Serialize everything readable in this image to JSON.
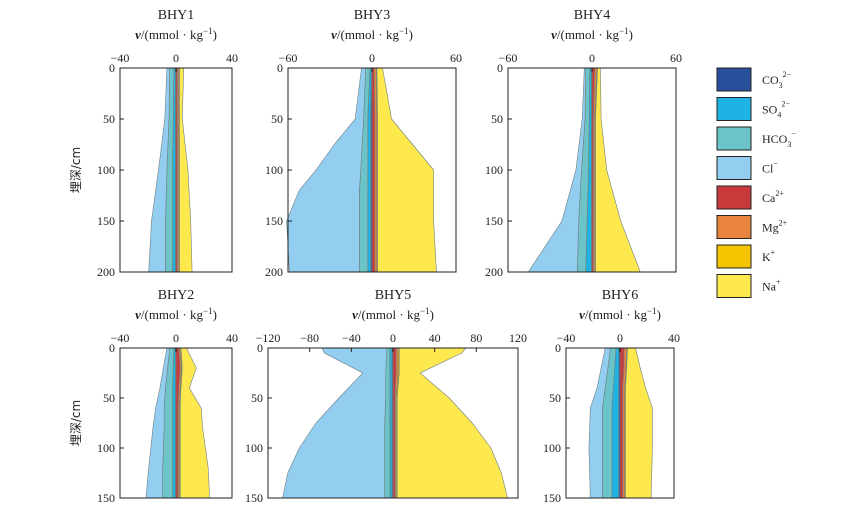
{
  "colors": {
    "CO3": "#2a4f9c",
    "SO4": "#1fb3e3",
    "HCO3": "#6cc4c8",
    "Cl": "#93cdf0",
    "Ca": "#c8393b",
    "Mg": "#e8843e",
    "K": "#f5c400",
    "Na": "#fde84e"
  },
  "legend": [
    {
      "key": "CO3",
      "base": "CO",
      "sub": "3",
      "sup": "2−"
    },
    {
      "key": "SO4",
      "base": "SO",
      "sub": "4",
      "sup": "2−"
    },
    {
      "key": "HCO3",
      "base": "HCO",
      "sub": "3",
      "sup": "−"
    },
    {
      "key": "Cl",
      "base": "Cl",
      "sub": "",
      "sup": "−"
    },
    {
      "key": "Ca",
      "base": "Ca",
      "sub": "",
      "sup": "2+"
    },
    {
      "key": "Mg",
      "base": "Mg",
      "sub": "",
      "sup": "2+"
    },
    {
      "key": "K",
      "base": "K",
      "sub": "",
      "sup": "+"
    },
    {
      "key": "Na",
      "base": "Na",
      "sub": "",
      "sup": "+"
    }
  ],
  "chart_data": [
    {
      "type": "area",
      "title": "BHY1",
      "xlabel_italic": "v",
      "xlabel_rest": "/(mmol · kg",
      "xlabel_sup": "−1",
      "xlabel_end": ")",
      "ylabel": "埋深/cm",
      "xlim": [
        -40,
        40
      ],
      "ylim": [
        200,
        0
      ],
      "xticks": [
        -40,
        0,
        40
      ],
      "yticks": [
        0,
        50,
        100,
        150,
        200
      ],
      "depth": [
        0,
        50,
        100,
        150,
        200
      ],
      "anions": {
        "CO3": [
          0.5,
          0.5,
          0.5,
          0.5,
          0.5
        ],
        "SO4": [
          1,
          1.5,
          2,
          2,
          2
        ],
        "HCO3": [
          3,
          3,
          4,
          5,
          5
        ],
        "Cl": [
          2,
          3,
          6,
          10,
          12
        ]
      },
      "cations": {
        "Ca": [
          1,
          1,
          1,
          1,
          1
        ],
        "Mg": [
          1,
          1,
          1,
          1,
          1
        ],
        "K": [
          0.5,
          0.5,
          0.5,
          0.5,
          0.5
        ],
        "Na": [
          3,
          2,
          6,
          8,
          9
        ]
      }
    },
    {
      "type": "area",
      "title": "BHY3",
      "xlabel_italic": "v",
      "xlabel_rest": "/(mmol · kg",
      "xlabel_sup": "−1",
      "xlabel_end": ")",
      "ylabel": "",
      "xlim": [
        -60,
        60
      ],
      "ylim": [
        200,
        0
      ],
      "xticks": [
        -60,
        0,
        60
      ],
      "yticks": [
        0,
        50,
        100,
        150,
        200
      ],
      "depth": [
        0,
        50,
        75,
        100,
        120,
        150,
        200
      ],
      "anions": {
        "CO3": [
          0.5,
          1,
          1,
          1,
          1,
          1,
          1
        ],
        "SO4": [
          1,
          2,
          2,
          2,
          2,
          2,
          2
        ],
        "HCO3": [
          3,
          3,
          4,
          5,
          6,
          6,
          6
        ],
        "Cl": [
          3,
          6,
          20,
          32,
          43,
          52,
          50
        ]
      },
      "cations": {
        "Ca": [
          1.5,
          2,
          2,
          2,
          2,
          2,
          2
        ],
        "Mg": [
          1.5,
          1.5,
          1.5,
          1.5,
          1.5,
          1.5,
          1.5
        ],
        "K": [
          0.5,
          0.5,
          0.5,
          0.5,
          0.5,
          0.5,
          0.5
        ],
        "Na": [
          4,
          10,
          25,
          40,
          40,
          40,
          42
        ]
      }
    },
    {
      "type": "area",
      "title": "BHY4",
      "xlabel_italic": "v",
      "xlabel_rest": "/(mmol · kg",
      "xlabel_sup": "−1",
      "xlabel_end": ")",
      "ylabel": "",
      "xlim": [
        -60,
        60
      ],
      "ylim": [
        200,
        0
      ],
      "xticks": [
        -60,
        0,
        60
      ],
      "yticks": [
        0,
        50,
        100,
        150,
        200
      ],
      "depth": [
        0,
        50,
        100,
        150,
        200
      ],
      "anions": {
        "CO3": [
          0.5,
          0.5,
          0.5,
          0.5,
          0.5
        ],
        "SO4": [
          1,
          1.5,
          2,
          3,
          4
        ],
        "HCO3": [
          3,
          3,
          5,
          6,
          6
        ],
        "Cl": [
          1,
          2,
          4,
          12,
          35
        ]
      },
      "cations": {
        "Ca": [
          2,
          1,
          1,
          1,
          1
        ],
        "Mg": [
          1.5,
          1,
          1,
          1,
          1
        ],
        "K": [
          0.5,
          0.5,
          0.5,
          0.5,
          0.5
        ],
        "Na": [
          2,
          4,
          8,
          18,
          32
        ]
      }
    },
    {
      "type": "area",
      "title": "BHY2",
      "xlabel_italic": "v",
      "xlabel_rest": "/(mmol · kg",
      "xlabel_sup": "−1",
      "xlabel_end": ")",
      "ylabel": "埋深/cm",
      "xlim": [
        -40,
        40
      ],
      "ylim": [
        150,
        0
      ],
      "xticks": [
        -40,
        0,
        40
      ],
      "yticks": [
        0,
        50,
        100,
        150
      ],
      "depth": [
        0,
        20,
        40,
        60,
        80,
        120,
        150
      ],
      "anions": {
        "CO3": [
          0.5,
          0.5,
          0.5,
          0.5,
          0.5,
          0.5,
          0.5
        ],
        "SO4": [
          1,
          1.5,
          2,
          2,
          2,
          2,
          2
        ],
        "HCO3": [
          3,
          4,
          5,
          6,
          6,
          7,
          7
        ],
        "Cl": [
          2,
          3,
          4,
          6,
          8,
          10,
          12
        ]
      },
      "cations": {
        "Ca": [
          2,
          3,
          2,
          1.5,
          1.5,
          1.5,
          1.5
        ],
        "Mg": [
          1,
          1,
          1,
          1,
          1,
          1,
          1
        ],
        "K": [
          0.5,
          0.5,
          0.5,
          0.5,
          0.5,
          0.5,
          0.5
        ],
        "Na": [
          4,
          10,
          6,
          15,
          16,
          20,
          21
        ]
      }
    },
    {
      "type": "area",
      "title": "BHY5",
      "xlabel_italic": "v",
      "xlabel_rest": "/(mmol · kg",
      "xlabel_sup": "−1",
      "xlabel_end": ")",
      "ylabel": "",
      "xlim": [
        -120,
        120
      ],
      "ylim": [
        150,
        0
      ],
      "xticks": [
        -120,
        -80,
        -40,
        0,
        40,
        80,
        120
      ],
      "yticks": [
        0,
        50,
        100,
        150
      ],
      "depth": [
        0,
        5,
        25,
        50,
        75,
        100,
        125,
        150
      ],
      "anions": {
        "CO3": [
          1,
          1,
          1,
          1,
          1,
          1,
          1,
          1
        ],
        "SO4": [
          2,
          2,
          2,
          2,
          2,
          2,
          2,
          2
        ],
        "HCO3": [
          3,
          3,
          4,
          4,
          5,
          5,
          5,
          5
        ],
        "Cl": [
          62,
          60,
          22,
          45,
          66,
          82,
          93,
          98
        ]
      },
      "cations": {
        "Ca": [
          3,
          3,
          3,
          2,
          2,
          2,
          2,
          2
        ],
        "Mg": [
          2,
          2,
          2,
          1,
          1,
          1,
          1,
          1
        ],
        "K": [
          1,
          1,
          1,
          1,
          1,
          1,
          1,
          1
        ],
        "Na": [
          64,
          60,
          20,
          50,
          72,
          90,
          100,
          106
        ]
      }
    },
    {
      "type": "area",
      "title": "BHY6",
      "xlabel_italic": "v",
      "xlabel_rest": "/(mmol · kg",
      "xlabel_sup": "−1",
      "xlabel_end": ")",
      "ylabel": "",
      "xlim": [
        -40,
        40
      ],
      "ylim": [
        150,
        0
      ],
      "xticks": [
        -40,
        0,
        40
      ],
      "yticks": [
        0,
        50,
        100,
        150
      ],
      "depth": [
        0,
        20,
        40,
        60,
        100,
        150
      ],
      "anions": {
        "CO3": [
          1,
          1,
          1,
          1,
          1,
          1
        ],
        "SO4": [
          2,
          3,
          4,
          5,
          5,
          5
        ],
        "HCO3": [
          4,
          5,
          6,
          7,
          7,
          7
        ],
        "Cl": [
          4,
          5,
          6,
          9,
          10,
          9
        ]
      },
      "cations": {
        "Ca": [
          3,
          3,
          2,
          2,
          2,
          2
        ],
        "Mg": [
          2,
          1.5,
          1.5,
          1.5,
          1.5,
          1.5
        ],
        "K": [
          0.5,
          0.5,
          0.5,
          0.5,
          0.5,
          0.5
        ],
        "Na": [
          6,
          10,
          15,
          20,
          20,
          19
        ]
      }
    }
  ]
}
